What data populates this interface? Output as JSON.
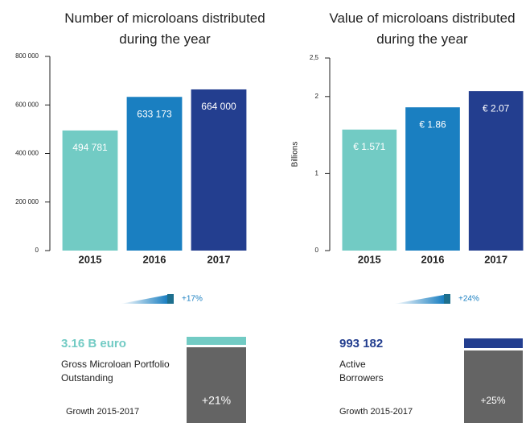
{
  "chart_data": [
    {
      "type": "bar",
      "title": "Number of microloans distributed during the year",
      "categories": [
        "2015",
        "2016",
        "2017"
      ],
      "values": [
        494781,
        633173,
        664000
      ],
      "value_labels": [
        "494 781",
        "633 173",
        "664 000"
      ],
      "colors": [
        "#72cbc4",
        "#1a7fc1",
        "#233e8f"
      ],
      "ylim": [
        0,
        800000
      ],
      "yticks": [
        0,
        {
          "value": 200000,
          "label": "200 000"
        },
        {
          "value": 400000,
          "label": "400 000"
        },
        {
          "value": 600000,
          "label": "600 000"
        },
        {
          "value": 800000,
          "label": "800 000"
        }
      ]
    },
    {
      "type": "bar",
      "title": "Value of microloans distributed during the year",
      "y_label": "Billions",
      "categories": [
        "2015",
        "2016",
        "2017"
      ],
      "values": [
        1.571,
        1.86,
        2.07
      ],
      "value_labels": [
        "€ 1.571",
        "€ 1.86",
        "€ 2.07"
      ],
      "colors": [
        "#72cbc4",
        "#1a7fc1",
        "#233e8f"
      ],
      "ylim": [
        0,
        2.5
      ],
      "yticks": [
        0,
        1,
        2,
        {
          "value": 2.5,
          "label": "2,5"
        }
      ]
    }
  ],
  "growth": [
    "+17%",
    "+24%"
  ],
  "stats": [
    {
      "value": "3.16 B euro",
      "description": "Gross Microloan Portfolio Outstanding",
      "period": "Growth 2015-2017",
      "growth": "+21%"
    },
    {
      "value": "993 182",
      "description": "Active Borrowers",
      "period": "Growth 2015-2017",
      "growth": "+25%"
    }
  ]
}
